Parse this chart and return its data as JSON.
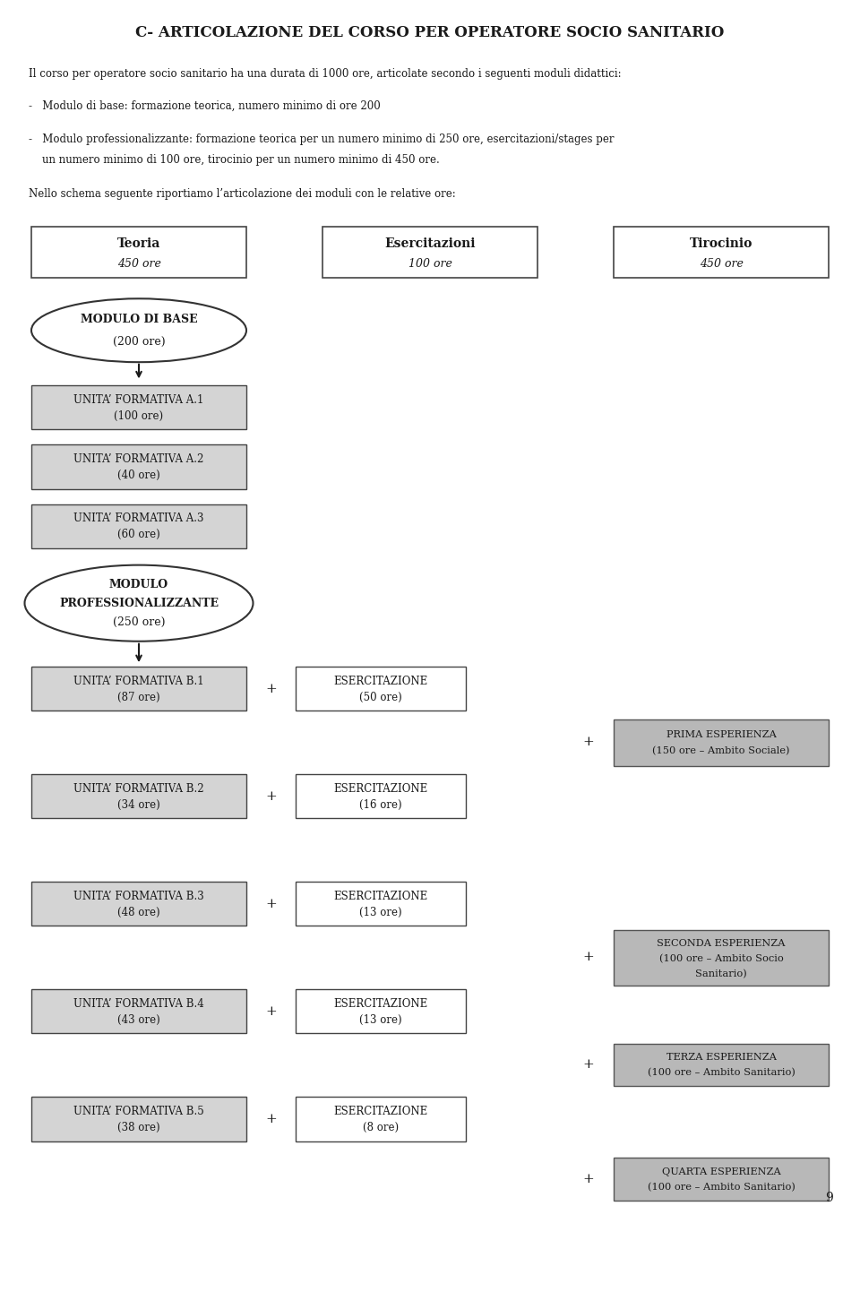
{
  "title": "C- ARTICOLAZIONE DEL CORSO PER OPERATORE SOCIO SANITARIO",
  "intro_text": "Il corso per operatore socio sanitario ha una durata di 1000 ore, articolate secondo i seguenti moduli didattici:",
  "bullet1": "-   Modulo di base: formazione teorica, numero minimo di ore 200",
  "bullet2a": "-   Modulo professionalizzante: formazione teorica per un numero minimo di 250 ore, esercitazioni/stages per",
  "bullet2b": "    un numero minimo di 100 ore, tirocinio per un numero minimo di 450 ore.",
  "nello_text": "Nello schema seguente riportiamo l’articolazione dei moduli con le relative ore:",
  "bg_color": "#ffffff",
  "text_color": "#1a1a1a",
  "box_light_gray": "#d4d4d4",
  "box_medium_gray": "#b0b0b0",
  "box_dark_gray": "#505050",
  "box_white": "#ffffff",
  "page_number": "9"
}
